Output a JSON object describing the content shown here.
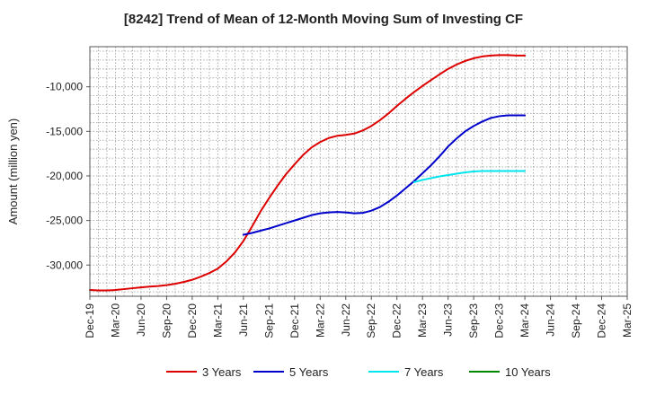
{
  "chart_data": {
    "type": "line",
    "title": "[8242]  Trend of Mean of 12-Month Moving Sum of Investing CF",
    "xlabel": "",
    "ylabel": "Amount (million yen)",
    "ylim": [
      -33500,
      -5500
    ],
    "y_ticks": [
      -10000,
      -15000,
      -20000,
      -25000,
      -30000
    ],
    "y_tick_labels": [
      "-10,000",
      "-15,000",
      "-20,000",
      "-25,000",
      "-30,000"
    ],
    "x_tick_labels": [
      "Dec-19",
      "Mar-20",
      "Jun-20",
      "Sep-20",
      "Dec-20",
      "Mar-21",
      "Jun-21",
      "Sep-21",
      "Dec-21",
      "Mar-22",
      "Jun-22",
      "Sep-22",
      "Dec-22",
      "Mar-23",
      "Jun-23",
      "Sep-23",
      "Dec-23",
      "Mar-24",
      "Jun-24",
      "Sep-24",
      "Dec-24",
      "Mar-25"
    ],
    "grid": true,
    "legend_position": "bottom",
    "series": [
      {
        "name": "3 Years",
        "color": "#dd0000",
        "x": [
          0,
          1,
          2,
          3,
          4,
          5,
          6,
          7,
          8,
          9,
          10,
          11,
          12,
          13,
          14,
          15,
          16,
          17,
          18,
          19,
          20,
          21,
          22,
          23,
          24,
          25,
          26,
          27,
          28,
          29,
          30,
          31,
          32,
          33,
          34,
          35,
          36,
          37,
          38,
          39,
          40,
          41,
          42,
          43,
          44,
          45,
          46,
          47,
          48,
          49,
          50,
          51
        ],
        "values": [
          -32800,
          -32850,
          -32850,
          -32800,
          -32700,
          -32600,
          -32500,
          -32420,
          -32350,
          -32250,
          -32100,
          -31900,
          -31650,
          -31300,
          -30900,
          -30400,
          -29600,
          -28600,
          -27300,
          -25700,
          -24000,
          -22500,
          -21100,
          -19800,
          -18700,
          -17650,
          -16800,
          -16200,
          -15750,
          -15500,
          -15400,
          -15250,
          -14900,
          -14400,
          -13750,
          -13000,
          -12150,
          -11350,
          -10600,
          -9900,
          -9250,
          -8600,
          -8000,
          -7500,
          -7100,
          -6800,
          -6600,
          -6500,
          -6450,
          -6450,
          -6500,
          -6500
        ]
      },
      {
        "name": "5 Years",
        "color": "#0000cc",
        "x": [
          18,
          19,
          20,
          21,
          22,
          23,
          24,
          25,
          26,
          27,
          28,
          29,
          30,
          31,
          32,
          33,
          34,
          35,
          36,
          37,
          38,
          39,
          40,
          41,
          42,
          43,
          44,
          45,
          46,
          47,
          48,
          49,
          50,
          51
        ],
        "values": [
          -26600,
          -26400,
          -26150,
          -25900,
          -25600,
          -25300,
          -25000,
          -24700,
          -24400,
          -24200,
          -24100,
          -24050,
          -24100,
          -24200,
          -24150,
          -23900,
          -23500,
          -22900,
          -22200,
          -21400,
          -20600,
          -19700,
          -18800,
          -17800,
          -16700,
          -15800,
          -15000,
          -14400,
          -13900,
          -13500,
          -13300,
          -13200,
          -13200,
          -13200
        ]
      },
      {
        "name": "7 Years",
        "color": "#00e5ee",
        "x": [
          38,
          39,
          40,
          41,
          42,
          43,
          44,
          45,
          46,
          47,
          48,
          49,
          50,
          51
        ],
        "values": [
          -20700,
          -20450,
          -20250,
          -20050,
          -19900,
          -19750,
          -19600,
          -19500,
          -19450,
          -19450,
          -19450,
          -19450,
          -19450,
          -19450
        ]
      },
      {
        "name": "10 Years",
        "color": "#008800",
        "x": [],
        "values": []
      }
    ]
  }
}
